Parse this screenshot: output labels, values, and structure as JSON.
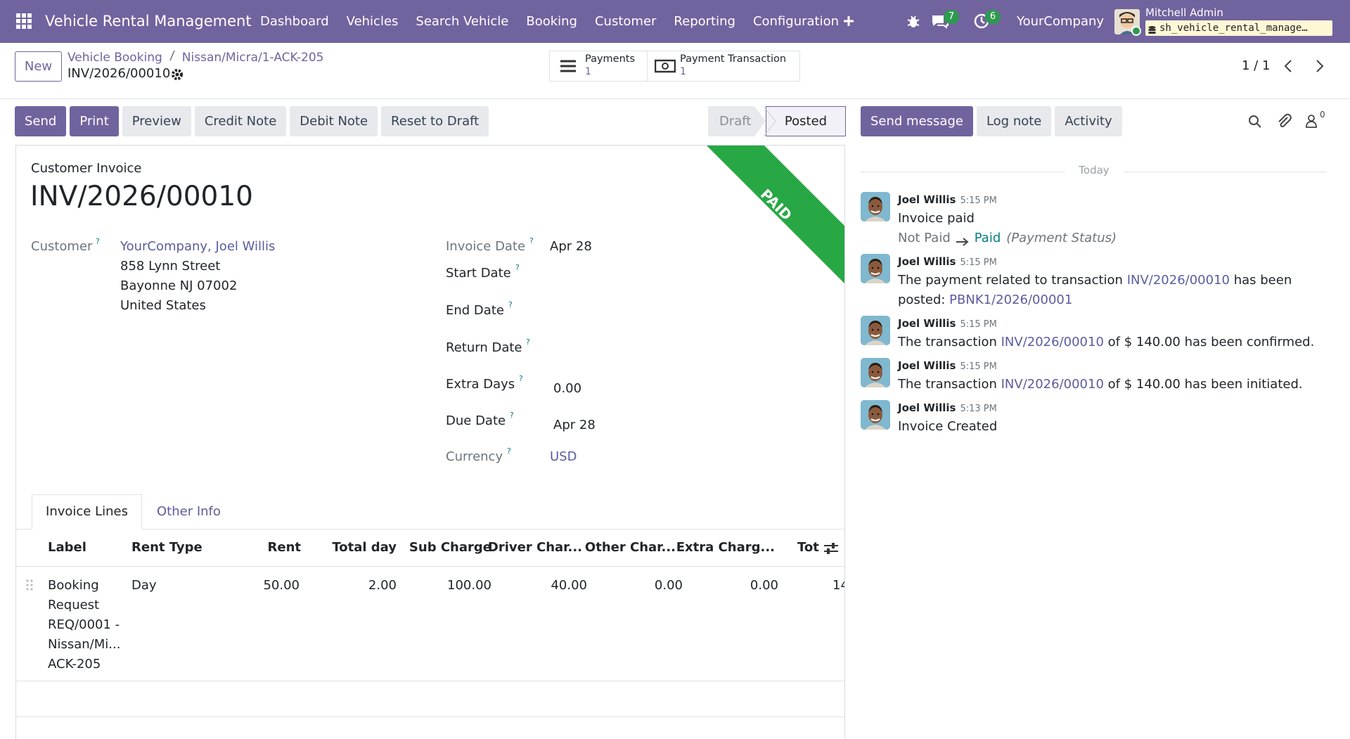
{
  "navbar": {
    "app_name": "Vehicle Rental Management",
    "menu": [
      "Dashboard",
      "Vehicles",
      "Search Vehicle",
      "Booking",
      "Customer",
      "Reporting",
      "Configuration"
    ],
    "messages_count": 7,
    "activities_count": 6,
    "company": "YourCompany",
    "user": "Mitchell Admin",
    "database": "sh_vehicle_rental_manage…"
  },
  "control_panel": {
    "new_button": "New",
    "breadcrumb": [
      "Vehicle Booking",
      "Nissan/Micra/1-ACK-205"
    ],
    "current": "INV/2026/00010",
    "smart_buttons": [
      {
        "label": "Payments",
        "count": 1
      },
      {
        "label": "Payment Transaction",
        "count": 1
      }
    ],
    "pager": "1 / 1"
  },
  "actions": [
    "Send",
    "Print",
    "Preview",
    "Credit Note",
    "Debit Note",
    "Reset to Draft"
  ],
  "status_stages": [
    "Draft",
    "Posted"
  ],
  "chatter_buttons": [
    "Send message",
    "Log note",
    "Activity"
  ],
  "followers_count": 0,
  "form": {
    "type": "Customer Invoice",
    "number": "INV/2026/00010",
    "ribbon": "PAID",
    "tooltip_marker": "?",
    "customer_label": "Customer",
    "customer": "YourCompany, Joel Willis",
    "address": [
      "858 Lynn Street",
      "Bayonne NJ 07002",
      "United States"
    ],
    "fields": [
      {
        "label": "Invoice Date",
        "value": "Apr 28"
      },
      {
        "label": "Start Date"
      },
      {
        "label": "End Date"
      },
      {
        "label": "Return Date"
      },
      {
        "label": "Extra Days",
        "value": "0.00"
      },
      {
        "label": "Due Date",
        "value": "Apr 28"
      },
      {
        "label": "Currency",
        "value": "USD"
      }
    ],
    "tabs": [
      "Invoice Lines",
      "Other Info"
    ],
    "table": {
      "columns": [
        "Label",
        "Rent Type",
        "Rent",
        "Total day",
        "Sub Charge",
        "Driver Char...",
        "Other Char...",
        "Extra Charg...",
        "Tot"
      ],
      "rows": [
        [
          "Booking Request REQ/0001 - Nissan/Mi... ACK-205",
          "Day",
          "50.00",
          "2.00",
          "100.00",
          "40.00",
          "0.00",
          "0.00",
          "14"
        ]
      ]
    }
  },
  "chatter": {
    "date_separator": "Today",
    "messages": [
      {
        "author": "Joel Willis",
        "time": "5:15 PM",
        "body": [
          {
            "text": "Invoice paid"
          }
        ],
        "tracking": {
          "old": "Not Paid",
          "new": "Paid",
          "field": "(Payment Status)"
        }
      },
      {
        "author": "Joel Willis",
        "time": "5:15 PM",
        "body": [
          {
            "text": "The payment related to transaction "
          },
          {
            "link": "INV/2026/00010"
          },
          {
            "text": " has been posted: "
          },
          {
            "link": "PBNK1/2026/00001"
          }
        ]
      },
      {
        "author": "Joel Willis",
        "time": "5:15 PM",
        "body": [
          {
            "text": "The transaction "
          },
          {
            "link": "INV/2026/00010"
          },
          {
            "text": " of $ 140.00 has been confirmed."
          }
        ]
      },
      {
        "author": "Joel Willis",
        "time": "5:15 PM",
        "body": [
          {
            "text": "The transaction "
          },
          {
            "link": "INV/2026/00010"
          },
          {
            "text": " of $ 140.00 has been initiated."
          }
        ]
      },
      {
        "author": "Joel Willis",
        "time": "5:13 PM",
        "body": [
          {
            "text": "Invoice Created"
          }
        ]
      }
    ]
  }
}
